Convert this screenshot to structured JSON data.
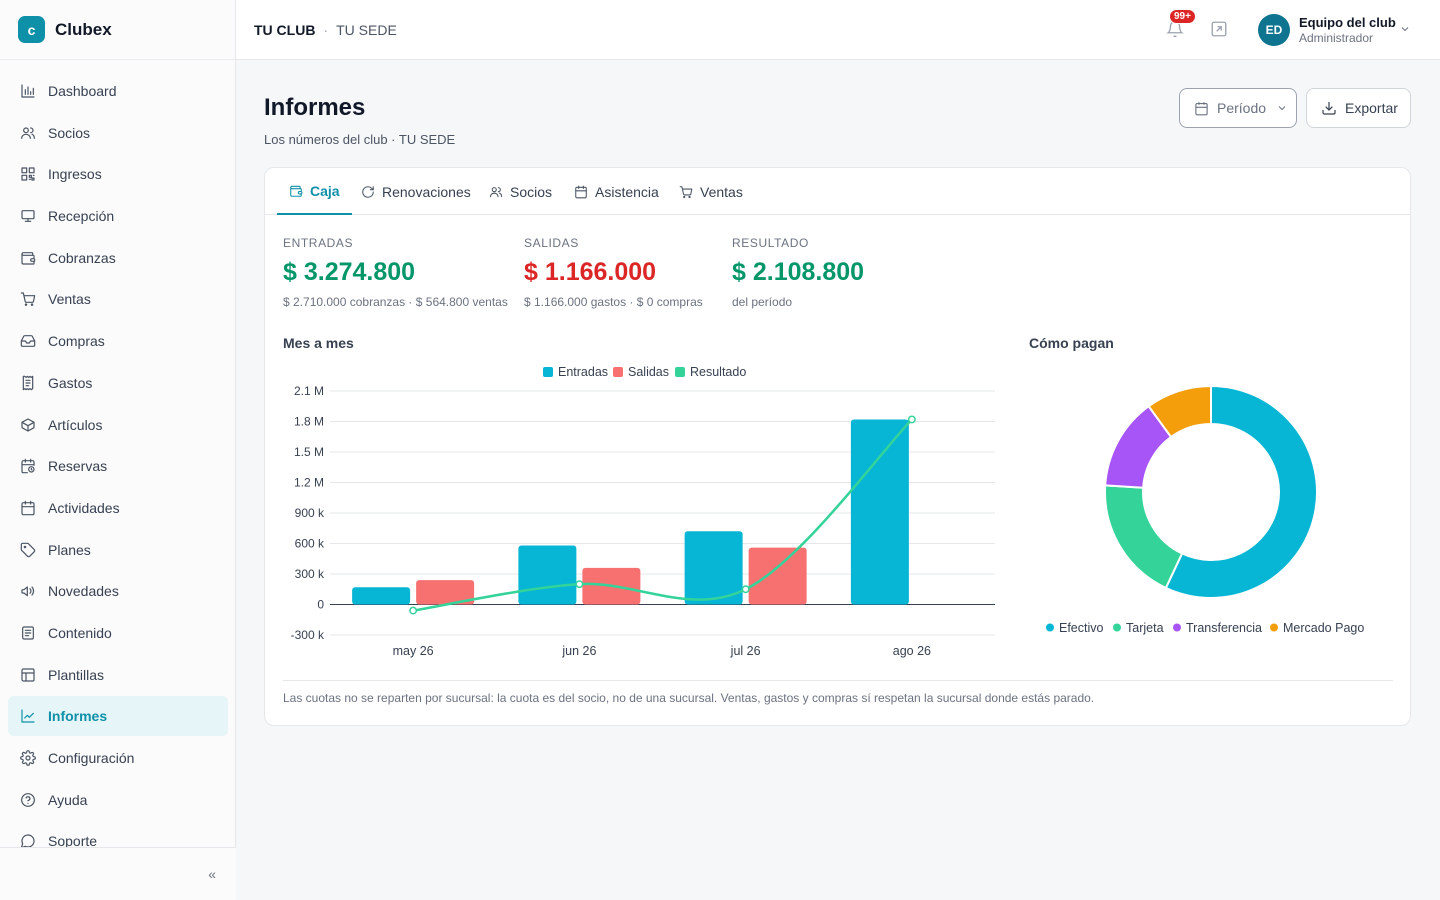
{
  "app": {
    "brand_initial": "c",
    "brand_name": "Clubex"
  },
  "sidebar": {
    "items": [
      {
        "label": "Dashboard",
        "icon": "bar-chart-icon"
      },
      {
        "label": "Socios",
        "icon": "users-icon"
      },
      {
        "label": "Ingresos",
        "icon": "qr-code-icon"
      },
      {
        "label": "Recepción",
        "icon": "monitor-icon"
      },
      {
        "label": "Cobranzas",
        "icon": "wallet-icon"
      },
      {
        "label": "Ventas",
        "icon": "cart-icon"
      },
      {
        "label": "Compras",
        "icon": "inbox-icon"
      },
      {
        "label": "Gastos",
        "icon": "receipt-icon"
      },
      {
        "label": "Artículos",
        "icon": "box-icon"
      },
      {
        "label": "Reservas",
        "icon": "calendar-clock-icon"
      },
      {
        "label": "Actividades",
        "icon": "calendar-icon"
      },
      {
        "label": "Planes",
        "icon": "tag-icon"
      },
      {
        "label": "Novedades",
        "icon": "megaphone-icon"
      },
      {
        "label": "Contenido",
        "icon": "document-icon"
      },
      {
        "label": "Plantillas",
        "icon": "template-icon"
      },
      {
        "label": "Informes",
        "icon": "trend-icon",
        "active": true
      },
      {
        "label": "Configuración",
        "icon": "gear-icon"
      },
      {
        "label": "Ayuda",
        "icon": "help-icon"
      },
      {
        "label": "Soporte",
        "icon": "chat-icon"
      }
    ],
    "collapse_glyph": "«"
  },
  "topbar": {
    "club": "TU CLUB",
    "separator": "·",
    "sede": "TU SEDE",
    "notifications_badge": "99+",
    "user_initials": "ED",
    "user_name": "Equipo del club",
    "user_role": "Administrador"
  },
  "page": {
    "title": "Informes",
    "subtitle": "Los números del club · TU SEDE",
    "period_button": "Período",
    "export_button": "Exportar"
  },
  "tabs": [
    {
      "label": "Caja",
      "icon": "wallet-icon",
      "active": true
    },
    {
      "label": "Renovaciones",
      "icon": "refresh-icon"
    },
    {
      "label": "Socios",
      "icon": "users-icon"
    },
    {
      "label": "Asistencia",
      "icon": "calendar-icon"
    },
    {
      "label": "Ventas",
      "icon": "cart-icon"
    }
  ],
  "metrics": [
    {
      "label": "ENTRADAS",
      "value": "$ 3.274.800",
      "note": "$ 2.710.000 cobranzas · $ 564.800 ventas",
      "color": "#059669"
    },
    {
      "label": "SALIDAS",
      "value": "$ 1.166.000",
      "note": "$ 1.166.000 gastos · $ 0 compras",
      "color": "#dc2626"
    },
    {
      "label": "RESULTADO",
      "value": "$ 2.108.800",
      "note": "del período",
      "color": "#059669"
    }
  ],
  "chart_titles": {
    "monthly": "Mes a mes",
    "payments": "Cómo pagan"
  },
  "chart_data": [
    {
      "type": "bar",
      "categories": [
        "may 26",
        "jun 26",
        "jul 26",
        "ago 26"
      ],
      "series": [
        {
          "name": "Entradas",
          "color": "#06b6d4",
          "values": [
            170000,
            580000,
            720000,
            1820000
          ]
        },
        {
          "name": "Salidas",
          "color": "#f87171",
          "values": [
            240000,
            360000,
            560000,
            0
          ]
        },
        {
          "name": "Resultado",
          "color": "#34d399",
          "style": "line",
          "values": [
            -60000,
            200000,
            150000,
            1820000
          ]
        }
      ],
      "yticks": [
        "2.1 M",
        "1.8 M",
        "1.5 M",
        "1.2 M",
        "900 k",
        "600 k",
        "300 k",
        "0",
        "-300 k"
      ],
      "ylim": [
        -300000,
        2100000
      ],
      "grid": true,
      "legend": "top-center"
    },
    {
      "type": "pie",
      "donut": true,
      "labels": [
        "Efectivo",
        "Tarjeta",
        "Transferencia",
        "Mercado Pago"
      ],
      "colors": [
        "#06b6d4",
        "#34d399",
        "#a855f7",
        "#f59e0b"
      ],
      "values": [
        57,
        19,
        14,
        10
      ],
      "legend": "bottom"
    }
  ],
  "footnote": "Las cuotas no se reparten por sucursal: la cuota es del socio, no de una sucursal. Ventas, gastos y compras sí respetan la sucursal donde estás parado."
}
